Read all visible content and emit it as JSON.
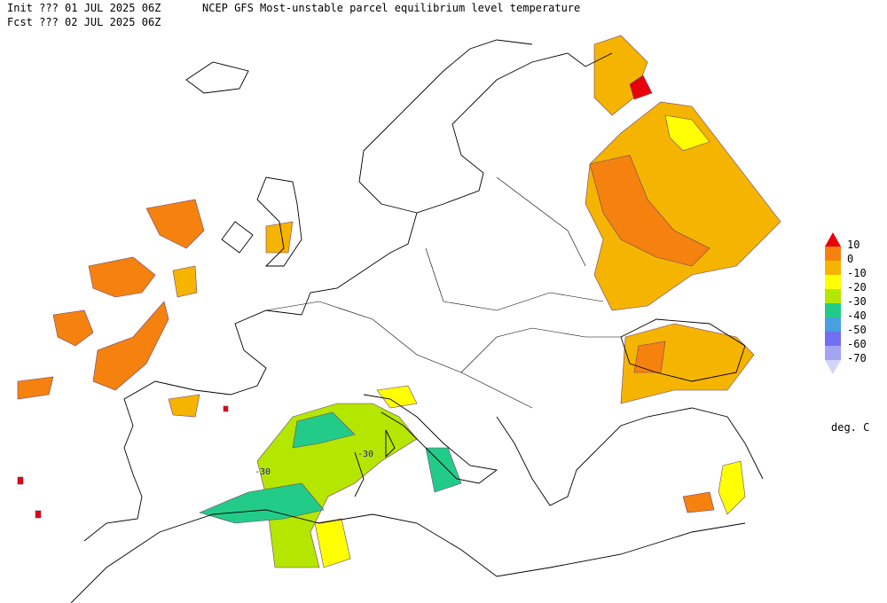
{
  "header": {
    "init": "Init  ??? 01 JUL 2025 06Z",
    "fcst": "Fcst ??? 02 JUL 2025 06Z",
    "title": "NCEP GFS Most-unstable parcel equilibrium level temperature"
  },
  "legend": {
    "labels": [
      "10",
      "0",
      "-10",
      "-20",
      "-30",
      "-40",
      "-50",
      "-60",
      "-70"
    ],
    "colors": [
      "#e8000b",
      "#f5820f",
      "#f5b400",
      "#ffff00",
      "#b4e600",
      "#22cc88",
      "#4a9fe0",
      "#7070f0",
      "#a4a4f4",
      "#d4d4fa"
    ],
    "units": "deg. C"
  },
  "map": {
    "contour_labels": [
      "-30",
      "-30"
    ]
  }
}
